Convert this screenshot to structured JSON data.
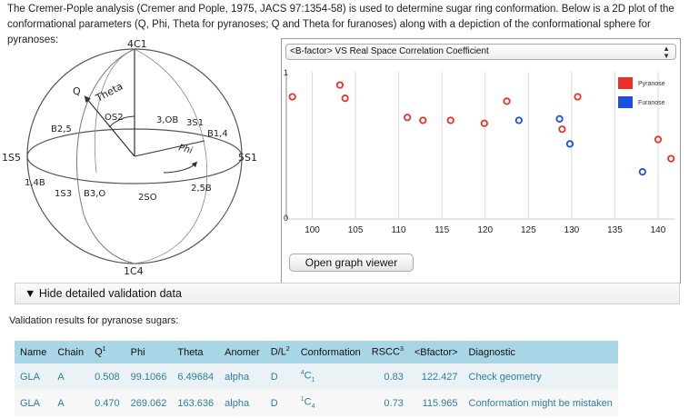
{
  "intro": {
    "text": "The Cremer-Pople analysis (Cremer and Pople, 1975, JACS 97:1354-58) is used to determine sugar ring conformation. Below is a 2D plot of the conformational parameters (Q, Phi, Theta for pyranoses; Q and Theta for furanoses) along with a depiction of the conformational sphere for pyranoses:"
  },
  "sphere": {
    "top_label": "4C1",
    "bottom_label": "1C4",
    "left_label": "1S5",
    "right_label": "5S1",
    "q_label": "Q",
    "theta_label": "Theta",
    "phi_label": "Phi",
    "labels": {
      "o_s2": "OS2",
      "b25": "B2,5",
      "ob30": "3,OB",
      "s1_3": "3S1",
      "b14": "B1,4",
      "b14_left": "1,4B",
      "s3_1": "1S3",
      "b30": "B3,O",
      "so2": "2SO",
      "b25_right": "2,5B"
    }
  },
  "plot": {
    "select_value": "<B-factor> VS Real Space Correlation Coefficient",
    "open_button": "Open graph viewer"
  },
  "chart_data": {
    "type": "scatter",
    "xlim": [
      97,
      142
    ],
    "ylim": [
      0,
      1
    ],
    "x_ticks": [
      "100",
      "105",
      "110",
      "115",
      "120",
      "125",
      "130",
      "135",
      "140"
    ],
    "y_ticks": [
      "0",
      "1"
    ],
    "legend": [
      "Pyranose",
      "Furanose"
    ],
    "legend_position": "top-right",
    "grid": "vertical",
    "series": [
      {
        "name": "Pyranose",
        "color": "#e8312a",
        "x": [
          97.7,
          103.2,
          103.8,
          111,
          112.8,
          116,
          119.9,
          122.5,
          128.9,
          130.7,
          140,
          141.5
        ],
        "y": [
          0.83,
          0.91,
          0.82,
          0.69,
          0.67,
          0.67,
          0.65,
          0.8,
          0.61,
          0.83,
          0.54,
          0.41
        ]
      },
      {
        "name": "Furanose",
        "color": "#1a4fe0",
        "x": [
          123.9,
          128.6,
          129.8,
          138.2
        ],
        "y": [
          0.67,
          0.68,
          0.51,
          0.32
        ]
      }
    ]
  },
  "toggle": {
    "label": "▼ Hide detailed validation data"
  },
  "validation": {
    "title": "Validation results for pyranose sugars:",
    "headers": [
      "Name",
      "Chain",
      "Q",
      "Phi",
      "Theta",
      "Anomer",
      "D/L",
      "Conformation",
      "RSCC",
      "<Bfactor>",
      "Diagnostic"
    ],
    "header_sups": [
      "",
      "",
      "1",
      "",
      "",
      "",
      "2",
      "",
      "3",
      "",
      ""
    ],
    "rows": [
      {
        "name": "GLA",
        "chain": "A",
        "q": "0.508",
        "phi": "99.1066",
        "theta": "6.49684",
        "anomer": "alpha",
        "dl": "D",
        "conf_sup": "4",
        "conf_main": "C",
        "conf_sub": "1",
        "rscc": "0.83",
        "bfactor": "122.427",
        "diagnostic": "Check geometry"
      },
      {
        "name": "GLA",
        "chain": "A",
        "q": "0.470",
        "phi": "269.062",
        "theta": "163.636",
        "anomer": "alpha",
        "dl": "D",
        "conf_sup": "1",
        "conf_main": "C",
        "conf_sub": "4",
        "rscc": "0.73",
        "bfactor": "115.965",
        "diagnostic": "Conformation might be mistaken"
      }
    ]
  }
}
